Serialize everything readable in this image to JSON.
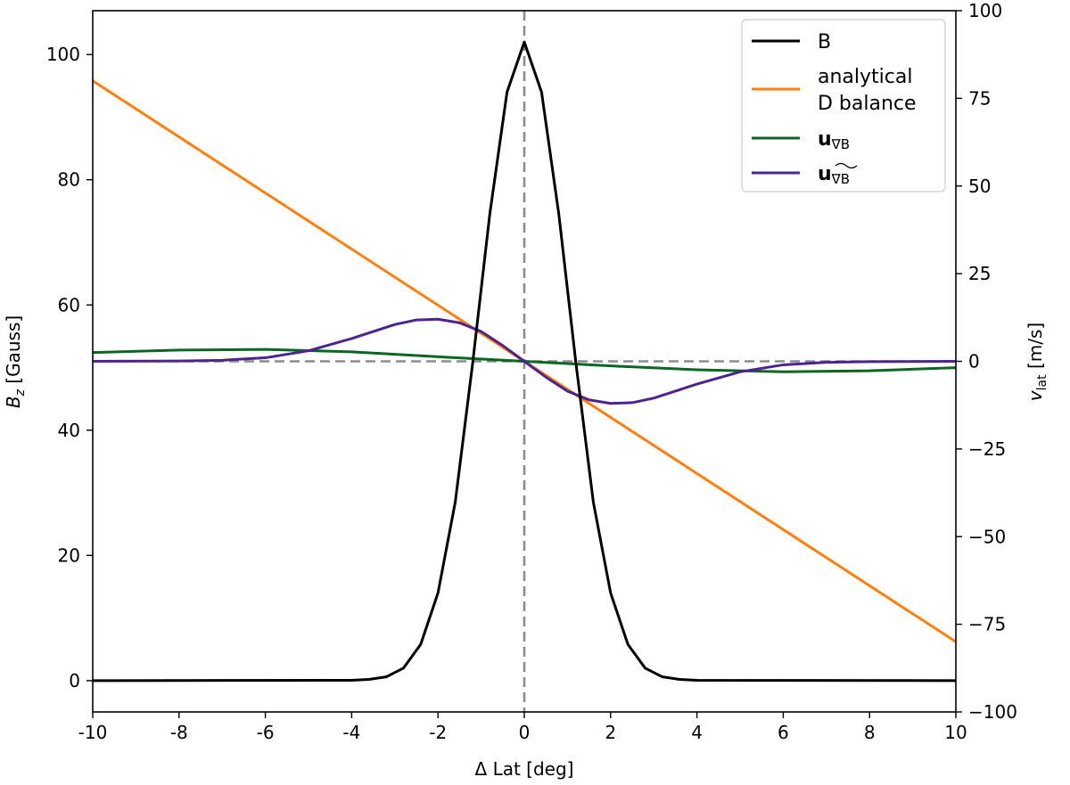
{
  "chart_data": {
    "type": "line",
    "xlabel": "Δ Lat [deg]",
    "ylabel_left_main": "B",
    "ylabel_left_sub": "z",
    "ylabel_left_units": " [Gauss]",
    "ylabel_right_main": "v",
    "ylabel_right_sub": "lat",
    "ylabel_right_units": " [m/s]",
    "xlim": [
      -10,
      10
    ],
    "ylim_left": [
      -5,
      107
    ],
    "ylim_right": [
      -100,
      100
    ],
    "xticks": [
      -10,
      -8,
      -6,
      -4,
      -2,
      0,
      2,
      4,
      6,
      8,
      10
    ],
    "xtick_labels": [
      "-10",
      "-8",
      "-6",
      "-4",
      "-2",
      "0",
      "2",
      "4",
      "6",
      "8",
      "10"
    ],
    "yticks_left": [
      0,
      20,
      40,
      60,
      80,
      100
    ],
    "ytick_labels_left": [
      "0",
      "20",
      "40",
      "60",
      "80",
      "100"
    ],
    "yticks_right": [
      -100,
      -75,
      -50,
      -25,
      0,
      25,
      50,
      75,
      100
    ],
    "ytick_labels_right": [
      "−100",
      "−75",
      "−50",
      "−25",
      "0",
      "25",
      "50",
      "75",
      "100"
    ],
    "reference_lines": {
      "x_zero": 0,
      "y_right_zero": 0,
      "style": "dashed"
    },
    "legend_position": "top-right",
    "series": [
      {
        "name": "B",
        "axis": "left",
        "color": "#000000",
        "x": [
          -10,
          -4,
          -3.6,
          -3.2,
          -2.8,
          -2.4,
          -2,
          -1.6,
          -1.2,
          -0.8,
          -0.4,
          0,
          0.4,
          0.8,
          1.2,
          1.6,
          2,
          2.4,
          2.8,
          3.2,
          3.6,
          4,
          10
        ],
        "y": [
          0,
          0.05,
          0.2,
          0.6,
          2,
          5.8,
          14,
          28.5,
          50.5,
          74.5,
          94,
          102,
          94,
          74.5,
          50.5,
          28.5,
          14,
          5.8,
          2,
          0.6,
          0.2,
          0.05,
          0
        ]
      },
      {
        "name": "analytical D balance",
        "legend_lines": [
          "analytical",
          "D balance"
        ],
        "axis": "right",
        "color": "#ff7f0e",
        "x": [
          -10,
          10
        ],
        "y": [
          80,
          -80
        ]
      },
      {
        "name": "u∇B",
        "legend_main": "u",
        "legend_sub": "∇B",
        "axis": "right",
        "color": "#0b6623",
        "x": [
          -10,
          -8,
          -6,
          -4,
          -2,
          0,
          2,
          4,
          6,
          8,
          10
        ],
        "y": [
          2.5,
          3.2,
          3.4,
          2.7,
          1.3,
          0,
          -1.3,
          -2.4,
          -3,
          -2.7,
          -1.8
        ]
      },
      {
        "name": "u∇B̃",
        "legend_main": "u",
        "legend_sub": "∇B",
        "legend_tilde": true,
        "axis": "right",
        "color": "#4b2491",
        "x": [
          -10,
          -8,
          -7,
          -6,
          -5,
          -4,
          -3.5,
          -3,
          -2.5,
          -2,
          -1.5,
          -1,
          -0.5,
          0,
          0.5,
          1,
          1.5,
          2,
          2.5,
          3,
          3.5,
          4,
          5,
          6,
          7,
          8,
          10
        ],
        "y": [
          0,
          0.1,
          0.3,
          1,
          3,
          6.5,
          8.5,
          10.5,
          11.8,
          12,
          11,
          8.5,
          4.5,
          0,
          -4.5,
          -8.5,
          -11,
          -12,
          -11.8,
          -10.5,
          -8.5,
          -6.5,
          -3,
          -1,
          -0.3,
          -0.1,
          0
        ]
      }
    ]
  }
}
